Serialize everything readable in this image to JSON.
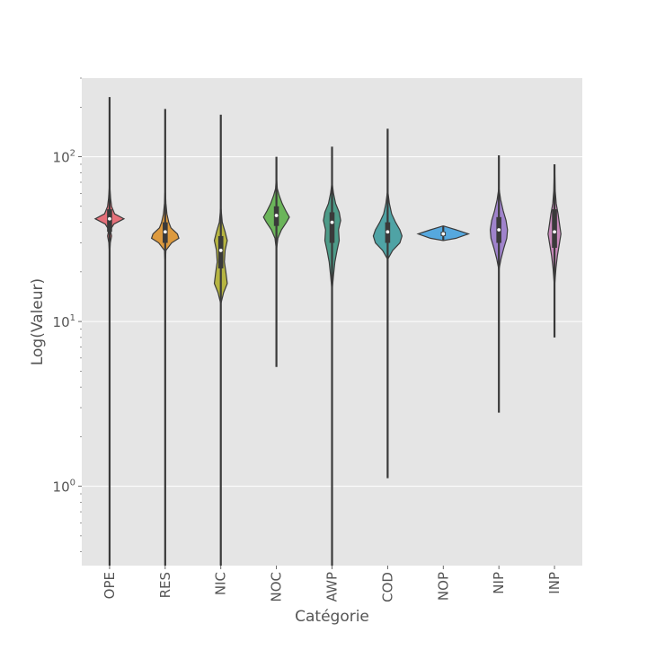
{
  "chart_data": {
    "type": "violin",
    "xlabel": "Catégorie",
    "ylabel": "Log(Valeur)",
    "yscale": "log",
    "ylim": [
      0.33,
      300
    ],
    "yticks": [
      {
        "value": 1,
        "base": "10",
        "exp": "0"
      },
      {
        "value": 10,
        "base": "10",
        "exp": "1"
      },
      {
        "value": 100,
        "base": "10",
        "exp": "2"
      }
    ],
    "grid": true,
    "categories": [
      "OPE",
      "RES",
      "NIC",
      "NOC",
      "AWP",
      "COD",
      "NOP",
      "NIP",
      "INP"
    ],
    "series": [
      {
        "category": "OPE",
        "color": "#e5707a",
        "min": 0.33,
        "max": 230,
        "q1": 35,
        "median": 42,
        "q3": 48,
        "profile": [
          [
            27,
            0.02
          ],
          [
            30,
            0.05
          ],
          [
            33,
            0.14
          ],
          [
            36,
            0.05
          ],
          [
            39,
            0.3
          ],
          [
            42,
            1.0
          ],
          [
            45,
            0.35
          ],
          [
            50,
            0.14
          ],
          [
            56,
            0.07
          ],
          [
            65,
            0.02
          ]
        ]
      },
      {
        "category": "RES",
        "color": "#dd9a3e",
        "min": 0.33,
        "max": 195,
        "q1": 30,
        "median": 35,
        "q3": 40,
        "profile": [
          [
            24,
            0.02
          ],
          [
            27,
            0.05
          ],
          [
            30,
            0.45
          ],
          [
            32,
            0.95
          ],
          [
            34,
            0.85
          ],
          [
            37,
            0.4
          ],
          [
            40,
            0.25
          ],
          [
            45,
            0.12
          ],
          [
            52,
            0.05
          ],
          [
            60,
            0.02
          ]
        ]
      },
      {
        "category": "NIC",
        "color": "#b6b542",
        "min": 0.33,
        "max": 180,
        "q1": 21,
        "median": 27,
        "q3": 33,
        "profile": [
          [
            13,
            0.02
          ],
          [
            15,
            0.2
          ],
          [
            17,
            0.45
          ],
          [
            20,
            0.35
          ],
          [
            23,
            0.25
          ],
          [
            27,
            0.3
          ],
          [
            31,
            0.45
          ],
          [
            35,
            0.3
          ],
          [
            40,
            0.1
          ],
          [
            48,
            0.02
          ]
        ]
      },
      {
        "category": "NOC",
        "color": "#6bb55a",
        "min": 5.3,
        "max": 100,
        "q1": 38,
        "median": 44,
        "q3": 50,
        "profile": [
          [
            28,
            0.02
          ],
          [
            32,
            0.1
          ],
          [
            36,
            0.35
          ],
          [
            40,
            0.7
          ],
          [
            43,
            0.9
          ],
          [
            47,
            0.65
          ],
          [
            52,
            0.4
          ],
          [
            58,
            0.2
          ],
          [
            64,
            0.06
          ],
          [
            72,
            0.02
          ]
        ]
      },
      {
        "category": "AWP",
        "color": "#4d9b88",
        "min": 0.33,
        "max": 115,
        "q1": 30,
        "median": 40,
        "q3": 46,
        "profile": [
          [
            16,
            0.02
          ],
          [
            19,
            0.1
          ],
          [
            23,
            0.2
          ],
          [
            27,
            0.35
          ],
          [
            31,
            0.5
          ],
          [
            36,
            0.45
          ],
          [
            41,
            0.6
          ],
          [
            46,
            0.5
          ],
          [
            52,
            0.25
          ],
          [
            60,
            0.1
          ],
          [
            68,
            0.02
          ]
        ]
      },
      {
        "category": "COD",
        "color": "#4fa3a5",
        "min": 1.12,
        "max": 148,
        "q1": 30,
        "median": 35,
        "q3": 40,
        "profile": [
          [
            24,
            0.02
          ],
          [
            27,
            0.35
          ],
          [
            30,
            0.85
          ],
          [
            33,
            1.0
          ],
          [
            36,
            0.85
          ],
          [
            40,
            0.55
          ],
          [
            45,
            0.28
          ],
          [
            52,
            0.12
          ],
          [
            60,
            0.03
          ]
        ]
      },
      {
        "category": "NOP",
        "color": "#56a8de",
        "min": 31,
        "max": 38,
        "q1": 33,
        "median": 34,
        "q3": 35,
        "profile": [
          [
            31,
            0.02
          ],
          [
            32,
            1.0
          ],
          [
            34,
            1.95
          ],
          [
            36,
            1.0
          ],
          [
            38,
            0.02
          ]
        ]
      },
      {
        "category": "NIP",
        "color": "#a083cc",
        "min": 2.8,
        "max": 102,
        "q1": 30,
        "median": 36,
        "q3": 43,
        "profile": [
          [
            21,
            0.02
          ],
          [
            24,
            0.15
          ],
          [
            28,
            0.35
          ],
          [
            32,
            0.55
          ],
          [
            36,
            0.6
          ],
          [
            41,
            0.5
          ],
          [
            47,
            0.3
          ],
          [
            55,
            0.12
          ],
          [
            63,
            0.02
          ]
        ]
      },
      {
        "category": "INP",
        "color": "#c98abb",
        "min": 8,
        "max": 90,
        "q1": 28,
        "median": 35,
        "q3": 48,
        "profile": [
          [
            17,
            0.02
          ],
          [
            21,
            0.1
          ],
          [
            25,
            0.2
          ],
          [
            30,
            0.35
          ],
          [
            34,
            0.45
          ],
          [
            39,
            0.35
          ],
          [
            45,
            0.25
          ],
          [
            52,
            0.12
          ],
          [
            62,
            0.05
          ],
          [
            80,
            0.02
          ]
        ]
      }
    ]
  }
}
